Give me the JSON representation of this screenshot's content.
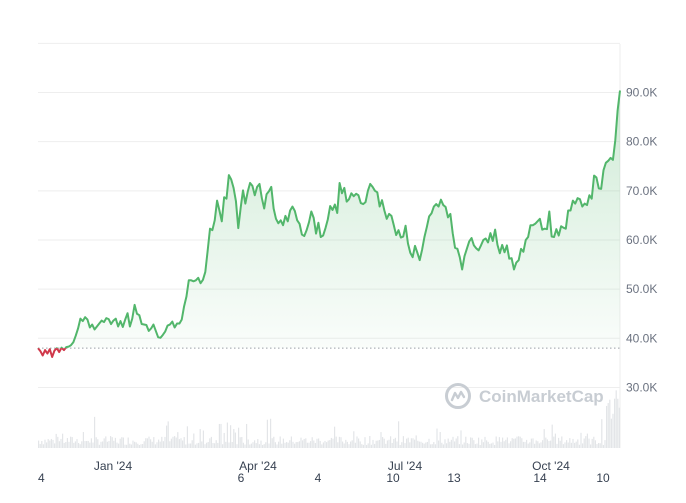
{
  "chart_data": {
    "type": "line",
    "y_unit": "USD",
    "ylim": [
      20000,
      100000
    ],
    "y_ticks": [
      "90.0K",
      "80.0K",
      "70.0K",
      "60.0K",
      "50.0K",
      "40.0K",
      "30.0K"
    ],
    "y_tick_values": [
      90000,
      80000,
      70000,
      60000,
      50000,
      40000,
      30000
    ],
    "x_ticks": [
      "4",
      "Jan '24",
      "Apr '24",
      "6",
      "4",
      "Jul '24",
      "10",
      "13",
      "Oct '24",
      "14",
      "10"
    ],
    "baseline": 38000,
    "grid": true,
    "legend": "none",
    "colors": {
      "up": "#52b66b",
      "down": "#d0384a",
      "fill": "#e7f5ec",
      "baseline": "#9aa0a6",
      "grid": "#eeeeee",
      "volume": "#e3e5e8"
    },
    "watermark": "CoinMarketCap",
    "series": [
      {
        "values": [
          38000,
          37400,
          36500,
          37600,
          36900,
          37800,
          36200,
          37500,
          38000,
          37200,
          38100,
          37600,
          38200,
          38300,
          38600,
          39200,
          40500,
          42000,
          44000,
          43500,
          44300,
          43800,
          42200,
          42800,
          41800,
          42400,
          43000,
          43600,
          43300,
          44100,
          43900,
          42900,
          43600,
          44000,
          42400,
          43500,
          42300,
          43800,
          45100,
          42400,
          44000,
          46800,
          45000,
          44700,
          42900,
          42800,
          42700,
          41500,
          42000,
          42800,
          41500,
          40200,
          40100,
          40700,
          41400,
          42600,
          42800,
          43400,
          42200,
          43000,
          43000,
          43800,
          46500,
          48500,
          51800,
          51800,
          51600,
          51800,
          52300,
          51200,
          51900,
          53500,
          57800,
          62300,
          62000,
          64000,
          68000,
          66000,
          63800,
          68700,
          68400,
          73200,
          72300,
          70600,
          67900,
          62400,
          66500,
          70100,
          67400,
          69800,
          71600,
          71000,
          69100,
          70800,
          71400,
          68500,
          66400,
          69300,
          69900,
          70800,
          66400,
          64300,
          63400,
          64000,
          63000,
          64900,
          63800,
          66000,
          66800,
          65900,
          64000,
          63300,
          61100,
          60800,
          62000,
          63600,
          65800,
          64500,
          61300,
          63500,
          60600,
          60900,
          62400,
          64200,
          66900,
          66100,
          67200,
          65500,
          71600,
          69500,
          70600,
          67800,
          68300,
          69500,
          68900,
          69400,
          69100,
          67500,
          67300,
          67700,
          70000,
          71400,
          70800,
          70000,
          69700,
          66800,
          68100,
          66000,
          64300,
          65300,
          64900,
          63000,
          61000,
          62000,
          60500,
          60700,
          62900,
          59300,
          57400,
          56500,
          58800,
          57400,
          55900,
          58000,
          60600,
          62600,
          64800,
          65400,
          66800,
          67300,
          66800,
          68200,
          67100,
          66700,
          64600,
          65300,
          61400,
          58400,
          58200,
          56500,
          54000,
          56700,
          58200,
          59700,
          60400,
          58900,
          58300,
          57900,
          58900,
          60000,
          60300,
          59500,
          61400,
          59800,
          62100,
          59000,
          57300,
          59000,
          57500,
          58900,
          56200,
          56300,
          54000,
          55400,
          55900,
          58200,
          57600,
          60000,
          60600,
          63000,
          63000,
          63300,
          63800,
          64300,
          62100,
          62300,
          62200,
          65800,
          60700,
          60600,
          62200,
          60900,
          62800,
          62500,
          62300,
          66000,
          66000,
          68000,
          67400,
          68500,
          68300,
          66800,
          67400,
          67100,
          69100,
          68400,
          73100,
          72700,
          70500,
          70400,
          74200,
          75700,
          76100,
          76700,
          76300,
          80300,
          86400,
          90400
        ]
      }
    ]
  }
}
